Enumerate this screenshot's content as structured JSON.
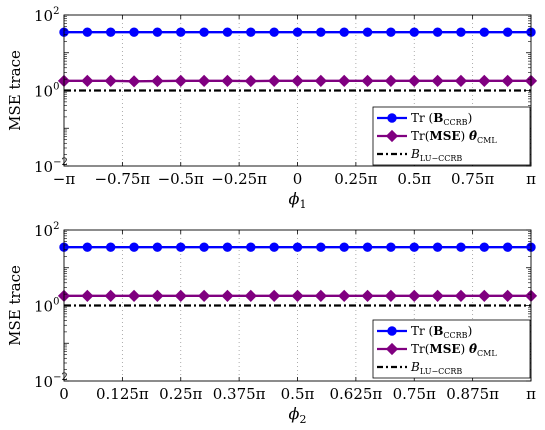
{
  "colors": {
    "ccrb": "#0000ff",
    "mse": "#800080",
    "lu": "#000000",
    "grid": "#999999",
    "axis": "#000000"
  },
  "chart_data": [
    {
      "type": "line",
      "title": "",
      "xlabel_base": "ϕ",
      "xlabel_sub": "1",
      "ylabel": "MSE trace",
      "yscale": "log",
      "ylim": [
        0.01,
        100
      ],
      "xlim": [
        -1,
        1
      ],
      "x_unit": "π",
      "grid": "vertical dotted",
      "legend_position": "bottom-right",
      "x_ticks": [
        -1,
        -0.75,
        -0.5,
        -0.25,
        0,
        0.25,
        0.5,
        0.75,
        1
      ],
      "x_tick_labels": [
        "−π",
        "−0.75π",
        "−0.5π",
        "−0.25π",
        "0",
        "0.25π",
        "0.5π",
        "0.75π",
        "π"
      ],
      "y_ticks": [
        0.01,
        1,
        100
      ],
      "y_tick_labels": [
        {
          "base": "10",
          "exp": "−2"
        },
        {
          "base": "10",
          "exp": "0"
        },
        {
          "base": "10",
          "exp": "2"
        }
      ],
      "series": [
        {
          "key": "ccrb",
          "legend": {
            "prefix": "Tr",
            "paren": "(",
            "bold": "B",
            "sub": "CCRB",
            "close": ")",
            "hat": ""
          },
          "marker": "circle",
          "line": "solid",
          "x": [
            -1,
            -0.9,
            -0.8,
            -0.7,
            -0.6,
            -0.5,
            -0.4,
            -0.3,
            -0.2,
            -0.1,
            0,
            0.1,
            0.2,
            0.3,
            0.4,
            0.5,
            0.6,
            0.7,
            0.8,
            0.9,
            1
          ],
          "values": [
            35,
            35,
            35,
            35,
            35,
            35,
            35,
            35,
            35,
            35,
            35,
            35,
            35,
            35,
            35,
            35,
            35,
            35,
            35,
            35,
            35
          ]
        },
        {
          "key": "mse",
          "legend": {
            "prefix": "Tr",
            "paren": "(",
            "bold": "MSE",
            "sub": "CML",
            "close": ")",
            "hat": "θ̂"
          },
          "marker": "diamond",
          "line": "solid",
          "x": [
            -1,
            -0.9,
            -0.8,
            -0.7,
            -0.6,
            -0.5,
            -0.4,
            -0.3,
            -0.2,
            -0.1,
            0,
            0.1,
            0.2,
            0.3,
            0.4,
            0.5,
            0.6,
            0.7,
            0.8,
            0.9,
            1
          ],
          "values": [
            1.8,
            1.8,
            1.8,
            1.75,
            1.78,
            1.8,
            1.8,
            1.8,
            1.78,
            1.8,
            1.8,
            1.8,
            1.8,
            1.8,
            1.8,
            1.8,
            1.8,
            1.8,
            1.8,
            1.8,
            1.8
          ]
        },
        {
          "key": "lu",
          "legend": {
            "prefix": "B",
            "paren": "",
            "bold": "",
            "sub": "LU−CCRB",
            "close": "",
            "hat": ""
          },
          "marker": "none",
          "line": "dashdot",
          "x": [
            -1,
            1
          ],
          "values": [
            1.0,
            1.0
          ]
        }
      ]
    },
    {
      "type": "line",
      "title": "",
      "xlabel_base": "ϕ",
      "xlabel_sub": "2",
      "ylabel": "MSE trace",
      "yscale": "log",
      "ylim": [
        0.01,
        100
      ],
      "xlim": [
        0,
        1
      ],
      "x_unit": "π",
      "grid": "vertical dotted",
      "legend_position": "bottom-right",
      "x_ticks": [
        0,
        0.125,
        0.25,
        0.375,
        0.5,
        0.625,
        0.75,
        0.875,
        1
      ],
      "x_tick_labels": [
        "0",
        "0.125π",
        "0.25π",
        "0.375π",
        "0.5π",
        "0.625π",
        "0.75π",
        "0.875π",
        "π"
      ],
      "y_ticks": [
        0.01,
        1,
        100
      ],
      "y_tick_labels": [
        {
          "base": "10",
          "exp": "−2"
        },
        {
          "base": "10",
          "exp": "0"
        },
        {
          "base": "10",
          "exp": "2"
        }
      ],
      "series": [
        {
          "key": "ccrb",
          "legend": {
            "prefix": "Tr",
            "paren": "(",
            "bold": "B",
            "sub": "CCRB",
            "close": ")",
            "hat": ""
          },
          "marker": "circle",
          "line": "solid",
          "x": [
            0,
            0.05,
            0.1,
            0.15,
            0.2,
            0.25,
            0.3,
            0.35,
            0.4,
            0.45,
            0.5,
            0.55,
            0.6,
            0.65,
            0.7,
            0.75,
            0.8,
            0.85,
            0.9,
            0.95,
            1
          ],
          "values": [
            35,
            35,
            35,
            35,
            35,
            35,
            35,
            35,
            35,
            35,
            35,
            35,
            35,
            35,
            35,
            35,
            35,
            35,
            35,
            35,
            35
          ]
        },
        {
          "key": "mse",
          "legend": {
            "prefix": "Tr",
            "paren": "(",
            "bold": "MSE",
            "sub": "CML",
            "close": ")",
            "hat": "θ̂"
          },
          "marker": "diamond",
          "line": "solid",
          "x": [
            0,
            0.05,
            0.1,
            0.15,
            0.2,
            0.25,
            0.3,
            0.35,
            0.4,
            0.45,
            0.5,
            0.55,
            0.6,
            0.65,
            0.7,
            0.75,
            0.8,
            0.85,
            0.9,
            0.95,
            1
          ],
          "values": [
            1.8,
            1.8,
            1.8,
            1.8,
            1.8,
            1.8,
            1.8,
            1.8,
            1.8,
            1.8,
            1.8,
            1.8,
            1.8,
            1.8,
            1.8,
            1.8,
            1.8,
            1.8,
            1.8,
            1.8,
            1.8
          ]
        },
        {
          "key": "lu",
          "legend": {
            "prefix": "B",
            "paren": "",
            "bold": "",
            "sub": "LU−CCRB",
            "close": "",
            "hat": ""
          },
          "marker": "none",
          "line": "dashdot",
          "x": [
            0,
            1
          ],
          "values": [
            1.0,
            1.0
          ]
        }
      ]
    }
  ]
}
